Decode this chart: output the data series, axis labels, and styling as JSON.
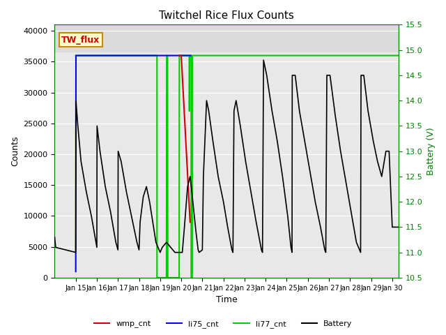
{
  "title": "Twitchel Rice Flux Counts",
  "xlabel": "Time",
  "ylabel_left": "Counts",
  "ylabel_right": "Battery (V)",
  "ylim_left": [
    0,
    41000
  ],
  "ylim_right": [
    10.5,
    15.5
  ],
  "yticks_left": [
    0,
    5000,
    10000,
    15000,
    20000,
    25000,
    30000,
    35000,
    40000
  ],
  "yticks_right": [
    10.5,
    11.0,
    11.5,
    12.0,
    12.5,
    13.0,
    13.5,
    14.0,
    14.5,
    15.0,
    15.5
  ],
  "xlim": [
    14.0,
    30.3
  ],
  "xticks": [
    15,
    16,
    17,
    18,
    19,
    20,
    21,
    22,
    23,
    24,
    25,
    26,
    27,
    28,
    29,
    30
  ],
  "xtick_labels": [
    "Jan 15",
    "Jan 16",
    "Jan 17",
    "Jan 18",
    "Jan 19",
    "Jan 20",
    "Jan 21",
    "Jan 22",
    "Jan 23",
    "Jan 24",
    "Jan 25",
    "Jan 26",
    "Jan 27",
    "Jan 28",
    "Jan 29",
    "Jan 30"
  ],
  "background_color": "#e8e8e8",
  "annotation_text": "TW_flux",
  "annotation_facecolor": "#ffffcc",
  "annotation_edgecolor": "#cc8800",
  "annotation_fontsize": 9,
  "li77_cnt_color": "#00cc00",
  "li75_cnt_color": "#0000ff",
  "wmp_cnt_color": "#cc0000",
  "battery_color": "#000000",
  "battery_kp": [
    [
      14.0,
      11.3
    ],
    [
      14.05,
      11.1
    ],
    [
      15.0,
      11.0
    ],
    [
      15.01,
      14.0
    ],
    [
      15.1,
      13.5
    ],
    [
      15.25,
      12.8
    ],
    [
      15.5,
      12.2
    ],
    [
      15.75,
      11.7
    ],
    [
      16.0,
      11.1
    ],
    [
      16.01,
      13.5
    ],
    [
      16.15,
      13.0
    ],
    [
      16.4,
      12.3
    ],
    [
      16.65,
      11.8
    ],
    [
      16.9,
      11.2
    ],
    [
      17.0,
      11.05
    ],
    [
      17.01,
      13.0
    ],
    [
      17.15,
      12.8
    ],
    [
      17.4,
      12.2
    ],
    [
      17.65,
      11.7
    ],
    [
      17.9,
      11.2
    ],
    [
      18.0,
      11.05
    ],
    [
      18.05,
      11.6
    ],
    [
      18.2,
      12.1
    ],
    [
      18.35,
      12.3
    ],
    [
      18.5,
      12.0
    ],
    [
      18.65,
      11.6
    ],
    [
      18.8,
      11.2
    ],
    [
      19.0,
      11.0
    ],
    [
      19.1,
      11.1
    ],
    [
      19.3,
      11.2
    ],
    [
      19.5,
      11.1
    ],
    [
      19.7,
      11.0
    ],
    [
      19.9,
      11.0
    ],
    [
      20.0,
      11.0
    ],
    [
      20.05,
      11.0
    ],
    [
      20.15,
      11.5
    ],
    [
      20.3,
      12.3
    ],
    [
      20.42,
      12.5
    ],
    [
      20.5,
      12.2
    ],
    [
      20.6,
      11.8
    ],
    [
      20.7,
      11.4
    ],
    [
      20.8,
      11.05
    ],
    [
      20.85,
      11.0
    ],
    [
      21.0,
      11.05
    ],
    [
      21.05,
      12.5
    ],
    [
      21.2,
      14.0
    ],
    [
      21.3,
      13.8
    ],
    [
      21.5,
      13.2
    ],
    [
      21.75,
      12.5
    ],
    [
      22.0,
      12.0
    ],
    [
      22.2,
      11.5
    ],
    [
      22.4,
      11.05
    ],
    [
      22.45,
      11.0
    ],
    [
      22.5,
      13.8
    ],
    [
      22.6,
      14.0
    ],
    [
      22.8,
      13.5
    ],
    [
      23.05,
      12.8
    ],
    [
      23.3,
      12.2
    ],
    [
      23.55,
      11.6
    ],
    [
      23.8,
      11.05
    ],
    [
      23.85,
      11.0
    ],
    [
      23.9,
      14.8
    ],
    [
      24.05,
      14.5
    ],
    [
      24.3,
      13.8
    ],
    [
      24.55,
      13.2
    ],
    [
      24.8,
      12.5
    ],
    [
      25.05,
      11.7
    ],
    [
      25.2,
      11.1
    ],
    [
      25.25,
      11.0
    ],
    [
      25.26,
      14.5
    ],
    [
      25.4,
      14.5
    ],
    [
      25.6,
      13.8
    ],
    [
      25.85,
      13.2
    ],
    [
      26.1,
      12.6
    ],
    [
      26.35,
      12.0
    ],
    [
      26.6,
      11.5
    ],
    [
      26.8,
      11.05
    ],
    [
      26.85,
      11.0
    ],
    [
      26.9,
      14.5
    ],
    [
      27.05,
      14.5
    ],
    [
      27.3,
      13.7
    ],
    [
      27.55,
      13.0
    ],
    [
      27.8,
      12.4
    ],
    [
      28.05,
      11.8
    ],
    [
      28.3,
      11.2
    ],
    [
      28.5,
      11.0
    ],
    [
      28.52,
      14.5
    ],
    [
      28.65,
      14.5
    ],
    [
      28.85,
      13.8
    ],
    [
      29.1,
      13.2
    ],
    [
      29.3,
      12.8
    ],
    [
      29.5,
      12.5
    ],
    [
      29.7,
      13.0
    ],
    [
      29.85,
      13.0
    ],
    [
      30.0,
      11.5
    ],
    [
      30.3,
      11.5
    ]
  ],
  "li77_kp": [
    [
      14.9,
      null
    ],
    [
      15.0,
      36000
    ],
    [
      18.85,
      36000
    ],
    [
      18.851,
      0
    ],
    [
      19.3,
      0
    ],
    [
      19.31,
      36000
    ],
    [
      19.35,
      36000
    ],
    [
      19.36,
      0
    ],
    [
      19.9,
      0
    ],
    [
      19.91,
      36000
    ],
    [
      20.38,
      36000
    ],
    [
      20.385,
      27000
    ],
    [
      20.395,
      36000
    ],
    [
      20.47,
      36000
    ],
    [
      20.471,
      0
    ],
    [
      20.52,
      0
    ],
    [
      20.521,
      36000
    ],
    [
      30.3,
      36000
    ]
  ],
  "li75_kp": [
    [
      14.9,
      null
    ],
    [
      15.0,
      1000
    ],
    [
      15.01,
      36000
    ],
    [
      20.45,
      36000
    ],
    [
      20.451,
      null
    ]
  ],
  "wmp_kp": [
    [
      19.85,
      null
    ],
    [
      19.9,
      36000
    ],
    [
      19.91,
      36000
    ],
    [
      20.0,
      36000
    ],
    [
      20.42,
      9000
    ],
    [
      20.43,
      null
    ]
  ]
}
